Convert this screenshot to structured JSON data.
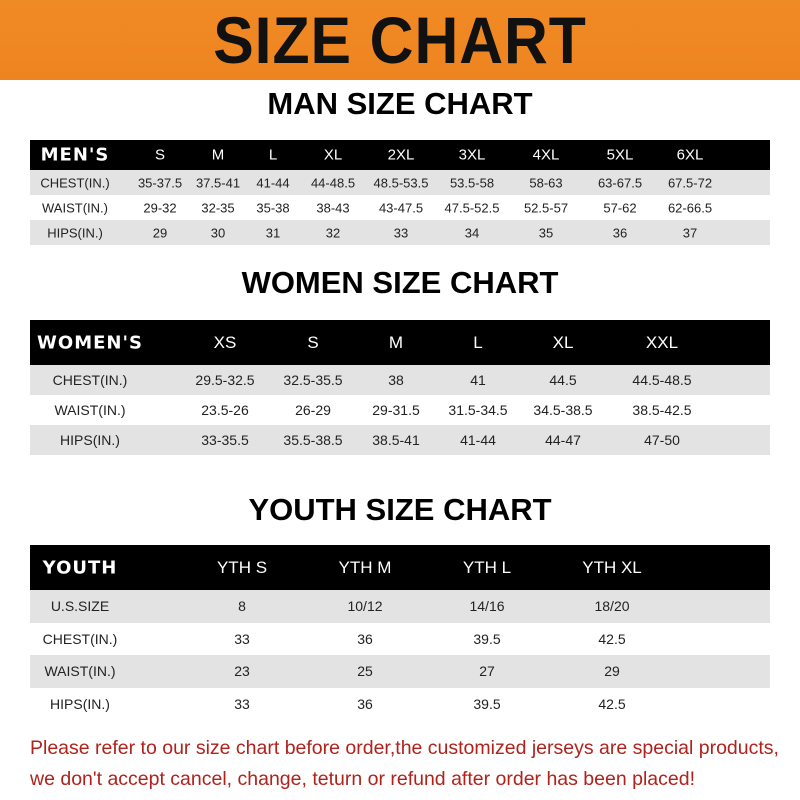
{
  "banner_title": "SIZE CHART",
  "men": {
    "title": "MAN SIZE CHART",
    "header": [
      "MEN'S",
      "S",
      "M",
      "L",
      "XL",
      "2XL",
      "3XL",
      "4XL",
      "5XL",
      "6XL"
    ],
    "rows": [
      [
        "CHEST(IN.)",
        "35-37.5",
        "37.5-41",
        "41-44",
        "44-48.5",
        "48.5-53.5",
        "53.5-58",
        "58-63",
        "63-67.5",
        "67.5-72"
      ],
      [
        "WAIST(IN.)",
        "29-32",
        "32-35",
        "35-38",
        "38-43",
        "43-47.5",
        "47.5-52.5",
        "52.5-57",
        "57-62",
        "62-66.5"
      ],
      [
        "HIPS(IN.)",
        "29",
        "30",
        "31",
        "32",
        "33",
        "34",
        "35",
        "36",
        "37"
      ]
    ]
  },
  "women": {
    "title": "WOMEN SIZE CHART",
    "header": [
      "WOMEN'S",
      "XS",
      "S",
      "M",
      "L",
      "XL",
      "XXL"
    ],
    "rows": [
      [
        "CHEST(IN.)",
        "29.5-32.5",
        "32.5-35.5",
        "38",
        "41",
        "44.5",
        "44.5-48.5"
      ],
      [
        "WAIST(IN.)",
        "23.5-26",
        "26-29",
        "29-31.5",
        "31.5-34.5",
        "34.5-38.5",
        "38.5-42.5"
      ],
      [
        "HIPS(IN.)",
        "33-35.5",
        "35.5-38.5",
        "38.5-41",
        "41-44",
        "44-47",
        "47-50"
      ]
    ]
  },
  "youth": {
    "title": "YOUTH SIZE CHART",
    "header": [
      "YOUTH",
      "YTH S",
      "YTH M",
      "YTH L",
      "YTH XL"
    ],
    "rows": [
      [
        "U.S.SIZE",
        "8",
        "10/12",
        "14/16",
        "18/20"
      ],
      [
        "CHEST(IN.)",
        "33",
        "36",
        "39.5",
        "42.5"
      ],
      [
        "WAIST(IN.)",
        "23",
        "25",
        "27",
        "29"
      ],
      [
        "HIPS(IN.)",
        "33",
        "36",
        "39.5",
        "42.5"
      ]
    ]
  },
  "notice": [
    "Please refer to our size chart before order,the customized jerseys are special products,",
    "we don't accept cancel, change, teturn or refund after order has been placed!"
  ],
  "colors": {
    "banner": "#f08a24",
    "header_row": "#000000",
    "gray_row": "#e3e3e3",
    "notice": "#b0221c"
  }
}
